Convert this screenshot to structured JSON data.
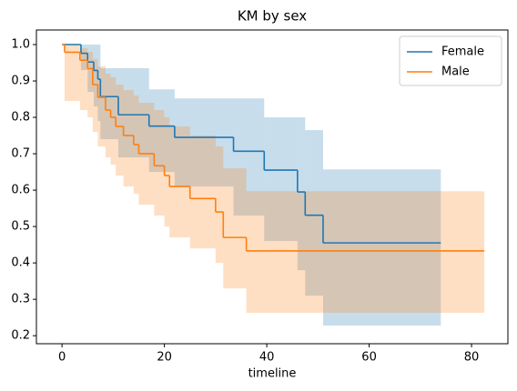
{
  "chart_data": {
    "type": "survival",
    "title": "KM by sex",
    "x_label": "timeline",
    "xlim": [
      -5,
      87.1
    ],
    "ylim": [
      0.178,
      1.04
    ],
    "xticks": [
      0,
      20,
      40,
      60,
      80
    ],
    "yticks": [
      0.2,
      0.3,
      0.4,
      0.5,
      0.6,
      0.7,
      0.8,
      0.9,
      {
        "value": 1,
        "label": "1.0"
      }
    ],
    "grid": false,
    "legend": "upper right",
    "band_opacity": 0.25,
    "series": [
      {
        "name": "Female",
        "color": "#1f77b4",
        "x": [
          0,
          3.7,
          5.0,
          6.2,
          7.0,
          7.5,
          11,
          17,
          22,
          33.5,
          39.5,
          46,
          47.5,
          51,
          74
        ],
        "values": [
          1.0,
          0.976,
          0.952,
          0.929,
          0.905,
          0.857,
          0.807,
          0.776,
          0.745,
          0.707,
          0.655,
          0.595,
          0.531,
          0.455,
          0.455
        ],
        "ci_upper": [
          1.0,
          1.0,
          1.0,
          1.0,
          1.0,
          0.935,
          0.935,
          0.877,
          0.852,
          0.852,
          0.8,
          0.8,
          0.765,
          0.657,
          0.657
        ],
        "ci_lower": [
          1.0,
          0.93,
          0.87,
          0.83,
          0.79,
          0.74,
          0.69,
          0.65,
          0.61,
          0.53,
          0.46,
          0.38,
          0.31,
          0.228,
          0.228
        ]
      },
      {
        "name": "Male",
        "color": "#ff7f0e",
        "x": [
          0,
          0.5,
          3.5,
          5.0,
          6.0,
          7.0,
          8.5,
          9.5,
          10.5,
          12.0,
          14.0,
          15.0,
          18.0,
          20.0,
          21.0,
          25.0,
          30.0,
          31.5,
          36.0,
          82.5
        ],
        "values": [
          1.0,
          0.979,
          0.957,
          0.934,
          0.89,
          0.855,
          0.82,
          0.8,
          0.775,
          0.75,
          0.725,
          0.7,
          0.667,
          0.64,
          0.61,
          0.577,
          0.54,
          0.47,
          0.433,
          0.433
        ],
        "ci_upper": [
          1.0,
          1.0,
          0.99,
          0.98,
          0.96,
          0.94,
          0.92,
          0.91,
          0.89,
          0.875,
          0.86,
          0.84,
          0.82,
          0.8,
          0.775,
          0.75,
          0.72,
          0.66,
          0.597,
          0.597
        ],
        "ci_lower": [
          1.0,
          0.845,
          0.82,
          0.8,
          0.76,
          0.72,
          0.69,
          0.67,
          0.64,
          0.61,
          0.59,
          0.56,
          0.53,
          0.5,
          0.47,
          0.44,
          0.4,
          0.33,
          0.263,
          0.263
        ]
      }
    ]
  }
}
